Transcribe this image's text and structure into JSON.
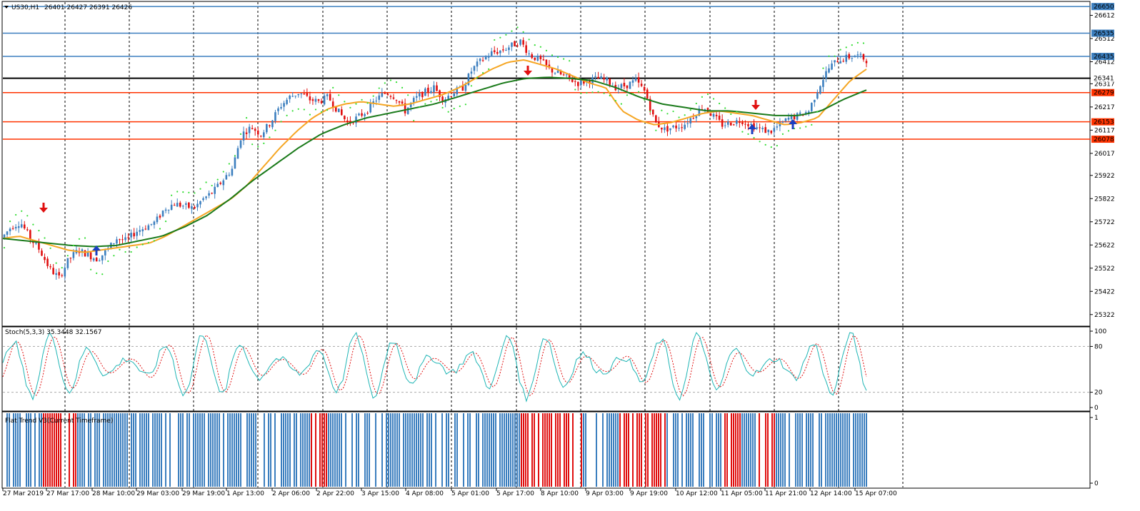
{
  "header": {
    "symbol_label": "US30,H1",
    "ohlc_text": "26401 26427 26391 26426"
  },
  "oscillator": {
    "label": "Stoch(5,3,3) 35.3448 32.1567",
    "levels": [
      100,
      80,
      20,
      0
    ],
    "main_color": "#1fb5b5",
    "signal_color": "#e01010"
  },
  "trend_panel": {
    "label": "Flat Trend V3(Current Timeframe)",
    "levels": [
      1,
      0
    ],
    "up_color": "#3c7fbf",
    "down_color": "#e01010"
  },
  "price_axis": {
    "ticks": [
      "26612",
      "26512",
      "26412",
      "26317",
      "26217",
      "26117",
      "26017",
      "25922",
      "25822",
      "25722",
      "25622",
      "25522",
      "25422",
      "25322"
    ],
    "min": 25272,
    "max": 26672
  },
  "levels": [
    {
      "price": "26650",
      "value": 26650,
      "color": "#3c7fbf"
    },
    {
      "price": "26535",
      "value": 26535,
      "color": "#3c7fbf"
    },
    {
      "price": "26435",
      "value": 26435,
      "color": "#3c7fbf"
    },
    {
      "price": "26341",
      "value": 26341,
      "color": "#000000"
    },
    {
      "price": "26279",
      "value": 26279,
      "color": "#ff3300"
    },
    {
      "price": "26153",
      "value": 26153,
      "color": "#ff3300"
    },
    {
      "price": "26078",
      "value": 26078,
      "color": "#ff3300"
    }
  ],
  "time_axis": [
    "27 Mar 2019",
    "27 Mar 17:00",
    "28 Mar 10:00",
    "29 Mar 03:00",
    "29 Mar 19:00",
    "1 Apr 13:00",
    "2 Apr 06:00",
    "2 Apr 22:00",
    "3 Apr 15:00",
    "4 Apr 08:00",
    "5 Apr 01:00",
    "5 Apr 17:00",
    "8 Apr 10:00",
    "9 Apr 03:00",
    "9 Apr 19:00",
    "10 Apr 12:00",
    "11 Apr 05:00",
    "11 Apr 21:00",
    "12 Apr 14:00",
    "15 Apr 07:00"
  ],
  "colors": {
    "bull": "#3c7fbf",
    "bear": "#e01010",
    "ma_fast": "#f5a623",
    "ma_slow": "#1a7a1a",
    "sar": "#33dd33",
    "arrow_up": "#1a3fc0",
    "arrow_down": "#e01010"
  },
  "chart_data": {
    "type": "candlestick",
    "title": "US30,H1",
    "price_path": [
      25650,
      25700,
      25720,
      25650,
      25600,
      25520,
      25480,
      25560,
      25600,
      25580,
      25560,
      25600,
      25650,
      25640,
      25680,
      25700,
      25720,
      25780,
      25800,
      25790,
      25780,
      25820,
      25850,
      25900,
      25950,
      26100,
      26130,
      26100,
      26150,
      26220,
      26260,
      26280,
      26250,
      26240,
      26260,
      26200,
      26150,
      26170,
      26200,
      26250,
      26280,
      26260,
      26200,
      26250,
      26280,
      26300,
      26250,
      26280,
      26300,
      26380,
      26420,
      26450,
      26460,
      26480,
      26500,
      26440,
      26420,
      26380,
      26360,
      26340,
      26320,
      26330,
      26340,
      26330,
      26300,
      26310,
      26330,
      26280,
      26150,
      26120,
      26130,
      26140,
      26180,
      26220,
      26180,
      26140,
      26150,
      26160,
      26140,
      26120,
      26110,
      26140,
      26170,
      26180,
      26200,
      26300,
      26380,
      26420,
      26430,
      26440,
      26420
    ],
    "ma_fast_path": [
      25650,
      25660,
      25640,
      25620,
      25600,
      25590,
      25600,
      25610,
      25620,
      25630,
      25660,
      25700,
      25740,
      25780,
      25820,
      25880,
      25960,
      26040,
      26110,
      26170,
      26210,
      26230,
      26240,
      26230,
      26220,
      26230,
      26250,
      26270,
      26300,
      26340,
      26380,
      26410,
      26420,
      26400,
      26380,
      26350,
      26320,
      26300,
      26200,
      26160,
      26140,
      26150,
      26170,
      26190,
      26200,
      26190,
      26180,
      26160,
      26140,
      26150,
      26170,
      26250,
      26330,
      26380
    ],
    "ma_slow_path": [
      25650,
      25640,
      25630,
      25620,
      25615,
      25620,
      25640,
      25660,
      25700,
      25750,
      25820,
      25900,
      25970,
      26040,
      26100,
      26140,
      26170,
      26190,
      26210,
      26230,
      26260,
      26290,
      26320,
      26340,
      26345,
      26340,
      26330,
      26300,
      26260,
      26230,
      26215,
      26200,
      26200,
      26190,
      26180,
      26180,
      26200,
      26250,
      26290
    ]
  }
}
